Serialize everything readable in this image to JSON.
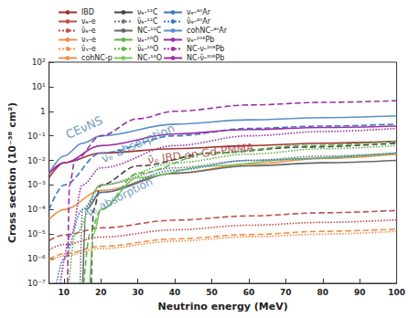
{
  "chart_data": {
    "type": "line",
    "x_label": "Neutrino energy (MeV)",
    "y_label": "Cross section (10⁻³⁸ cm²)",
    "log": "y",
    "grid": false,
    "legend": "top",
    "xlim": [
      6,
      100
    ],
    "xticks": [
      10,
      20,
      30,
      40,
      50,
      60,
      70,
      80,
      90,
      100
    ],
    "ylim": [
      1e-07,
      100
    ],
    "yticks": [
      {
        "value": 1e-07,
        "label": "10⁻⁷"
      },
      {
        "value": 1e-06,
        "label": "10⁻⁶"
      },
      {
        "value": 1e-05,
        "label": "10⁻⁵"
      },
      {
        "value": 0.0001,
        "label": "10⁻⁴"
      },
      {
        "value": 0.001,
        "label": "10⁻³"
      },
      {
        "value": 0.01,
        "label": "10⁻²"
      },
      {
        "value": 0.1,
        "label": "10⁻¹"
      },
      1,
      {
        "value": 10,
        "label": "10¹"
      },
      {
        "value": 100,
        "label": "10²"
      }
    ],
    "series": [
      {
        "name": "IBD",
        "color": "#a0312f",
        "line_style": "solid",
        "x": [
          6,
          10,
          20,
          40,
          60,
          80,
          100
        ],
        "values": [
          0.002,
          0.008,
          0.02,
          0.03,
          0.04,
          0.05,
          0.06
        ]
      },
      {
        "name": "νₑ-e",
        "color": "#c0504d",
        "line_style": "dashed",
        "x": [
          6,
          10,
          20,
          40,
          60,
          80,
          100
        ],
        "values": [
          5.5e-06,
          9.2e-06,
          1.8e-05,
          3.7e-05,
          5.5e-05,
          7.4e-05,
          9.2e-05
        ]
      },
      {
        "name": "ν̄ₑ-e",
        "color": "#c0504d",
        "line_style": "dotted",
        "x": [
          6,
          10,
          20,
          40,
          60,
          80,
          100
        ],
        "values": [
          2.3e-06,
          3.8e-06,
          7.6e-06,
          1.5e-05,
          2.3e-05,
          3e-05,
          3.8e-05
        ]
      },
      {
        "name": "νₓ-e",
        "color": "#f0914a",
        "line_style": "dashed",
        "x": [
          6,
          10,
          20,
          40,
          60,
          80,
          100
        ],
        "values": [
          9.6e-07,
          1.6e-06,
          3.2e-06,
          6.4e-06,
          9.6e-06,
          1.3e-05,
          1.6e-05
        ]
      },
      {
        "name": "ν̄ₓ-e",
        "color": "#f0914a",
        "line_style": "dotted",
        "x": [
          6,
          10,
          20,
          40,
          60,
          80,
          100
        ],
        "values": [
          7.8e-07,
          1.3e-06,
          2.6e-06,
          5.2e-06,
          7.8e-06,
          1e-05,
          1.3e-05
        ]
      },
      {
        "name": "cohNC-p",
        "color": "#f0914a",
        "line_style": "solid",
        "x": [
          6,
          10,
          20,
          40,
          60,
          80,
          100
        ],
        "values": [
          4e-05,
          0.0001,
          0.0006,
          0.003,
          0.007,
          0.012,
          0.018
        ]
      },
      {
        "name": "νₑ-¹²C",
        "color": "#444444",
        "line_style": "dashed",
        "x": [
          17.4,
          18,
          20,
          30,
          50,
          75,
          100
        ],
        "values": [
          1e-07,
          0.0001,
          0.001,
          0.006,
          0.02,
          0.035,
          0.05
        ]
      },
      {
        "name": "ν̄ₑ-¹²C",
        "color": "#777777",
        "line_style": "dotted",
        "x": [
          14.4,
          15,
          20,
          40,
          60,
          80,
          100
        ],
        "values": [
          1e-07,
          0.0001,
          0.001,
          0.005,
          0.01,
          0.015,
          0.02
        ]
      },
      {
        "name": "NC-¹²C",
        "color": "#666666",
        "line_style": "solid",
        "x": [
          15.1,
          16,
          20,
          40,
          60,
          80,
          100
        ],
        "values": [
          1e-07,
          0.0001,
          0.0005,
          0.003,
          0.006,
          0.008,
          0.01
        ]
      },
      {
        "name": "νₑ-¹⁶O",
        "color": "#5fb548",
        "line_style": "dashed",
        "x": [
          15.4,
          17,
          20,
          30,
          50,
          75,
          100
        ],
        "values": [
          1e-07,
          1e-05,
          0.0001,
          0.003,
          0.02,
          0.04,
          0.06
        ]
      },
      {
        "name": "ν̄ₑ-¹⁶O",
        "color": "#5fb548",
        "line_style": "dotted",
        "x": [
          11.4,
          13,
          20,
          40,
          60,
          80,
          100
        ],
        "values": [
          1e-07,
          1e-05,
          0.001,
          0.008,
          0.018,
          0.03,
          0.04
        ]
      },
      {
        "name": "NC-¹⁶O",
        "color": "#7dc95e",
        "line_style": "solid",
        "x": [
          17,
          18,
          20,
          30,
          50,
          75,
          100
        ],
        "values": [
          1e-07,
          1e-05,
          0.0001,
          0.002,
          0.006,
          0.012,
          0.02
        ]
      },
      {
        "name": "νₑ-⁴⁰Ar",
        "color": "#3b78c0",
        "line_style": "dashed",
        "x": [
          6,
          10,
          20,
          40,
          60,
          80,
          100
        ],
        "values": [
          0.0001,
          0.001,
          0.02,
          0.1,
          0.2,
          0.25,
          0.3
        ]
      },
      {
        "name": "ν̄ₑ-⁴⁰Ar",
        "color": "#3b78c0",
        "line_style": "dotted",
        "x": [
          8,
          10,
          15,
          20,
          40,
          60,
          100
        ],
        "values": [
          1e-07,
          1e-06,
          0.0001,
          0.0005,
          0.004,
          0.01,
          0.02
        ]
      },
      {
        "name": "cohNC-⁴⁰Ar",
        "color": "#5b8fc9",
        "line_style": "solid",
        "x": [
          6,
          10,
          15,
          20,
          40,
          60,
          80,
          100
        ],
        "values": [
          0.003,
          0.015,
          0.05,
          0.1,
          0.3,
          0.45,
          0.55,
          0.65
        ]
      },
      {
        "name": "νₑ-²⁰⁸Pb",
        "color": "#9b32a8",
        "line_style": "dashed",
        "x": [
          11,
          11.5,
          13,
          20,
          30,
          40,
          60,
          80,
          100
        ],
        "values": [
          1e-07,
          0.001,
          0.01,
          0.1,
          0.5,
          1,
          1.8,
          2.3,
          2.7
        ]
      },
      {
        "name": "NC-ν-²⁰⁸Pb",
        "color": "#9b32a8",
        "line_style": "dotted",
        "x": [
          9,
          12,
          15,
          20,
          40,
          60,
          80,
          100
        ],
        "values": [
          1e-07,
          1e-05,
          0.001,
          0.005,
          0.04,
          0.1,
          0.15,
          0.2
        ]
      },
      {
        "name": "NC-ν̄-²⁰⁸Pb",
        "color": "#9b32a8",
        "line_style": "solid",
        "x": [
          6,
          10,
          20,
          40,
          60,
          80,
          100
        ],
        "values": [
          0.003,
          0.008,
          0.04,
          0.12,
          0.18,
          0.22,
          0.25
        ]
      }
    ],
    "annotations": [
      {
        "text": "CEνNS",
        "color": "#4a7fb5"
      },
      {
        "text": "νₑ absorption",
        "color": "#4a7fb5"
      },
      {
        "text": "ν̄ₑ IBD on Gd-PMMA",
        "color": "#a0312f"
      },
      {
        "text": "ν̄ₑ absorption",
        "color": "#4a7fb5"
      }
    ]
  }
}
